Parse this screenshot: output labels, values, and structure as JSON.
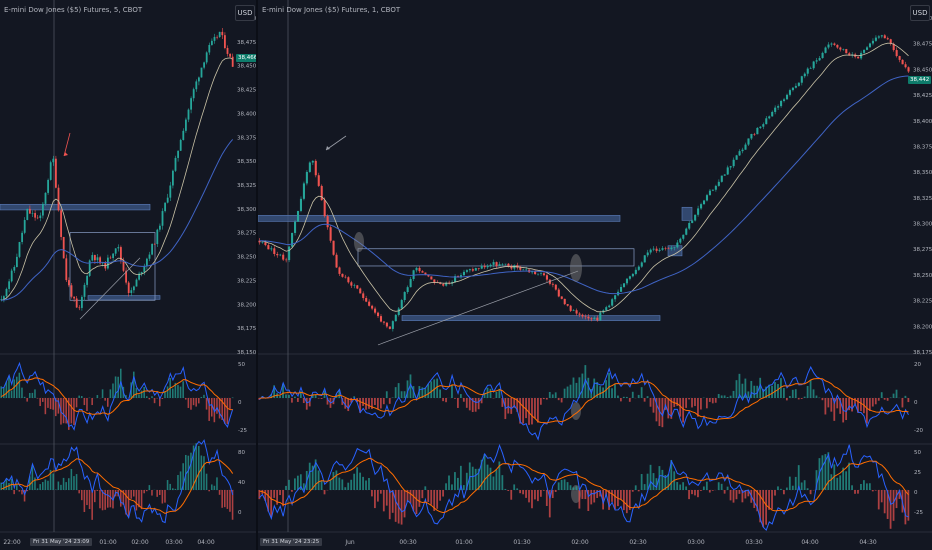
{
  "left_chart": {
    "title": "E-mini Dow Jones ($5) Futures, 5, CBOT",
    "currency_button": "USD",
    "price_tag": "38,466",
    "price_axis": [
      "38,500",
      "38,475",
      "38,450",
      "38,425",
      "38,400",
      "38,375",
      "38,350",
      "38,325",
      "38,300",
      "38,275",
      "38,250",
      "38,225",
      "38,200",
      "38,175",
      "38,150"
    ],
    "macd1_axis": [
      "50",
      "0",
      "-25"
    ],
    "macd2_axis": [
      "80",
      "40",
      "0"
    ],
    "time_axis": [
      "22:00",
      "01:00",
      "02:00",
      "03:00",
      "04:00"
    ],
    "crosshair_time": "Fri 31 May '24   23:09"
  },
  "right_chart": {
    "title": "E-mini Dow Jones ($5) Futures, 1, CBOT",
    "currency_button": "USD",
    "price_tag": "38,442",
    "price_axis": [
      "38,500",
      "38,475",
      "38,450",
      "38,425",
      "38,400",
      "38,375",
      "38,350",
      "38,325",
      "38,300",
      "38,275",
      "38,250",
      "38,225",
      "38,200",
      "38,175"
    ],
    "macd1_axis": [
      "20",
      "0",
      "-20"
    ],
    "macd2_axis": [
      "50",
      "25",
      "0",
      "-25"
    ],
    "time_axis": [
      "Jun",
      "00:30",
      "01:00",
      "01:30",
      "02:00",
      "02:30",
      "03:00",
      "03:30",
      "04:00",
      "04:30"
    ],
    "crosshair_time": "Fri 31 May '24   23:25"
  },
  "colors": {
    "background": "#131722",
    "up": "#26a69a",
    "down": "#ef5350",
    "zone": "#3d5a8a",
    "macd": "#2962ff",
    "signal": "#ff6d00"
  }
}
